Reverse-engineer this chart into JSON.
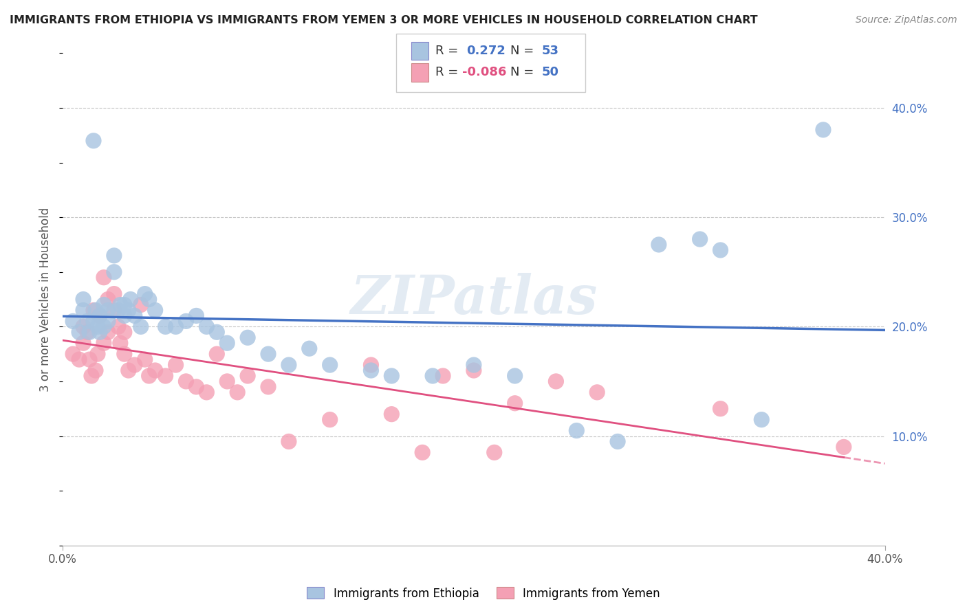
{
  "title": "IMMIGRANTS FROM ETHIOPIA VS IMMIGRANTS FROM YEMEN 3 OR MORE VEHICLES IN HOUSEHOLD CORRELATION CHART",
  "source": "Source: ZipAtlas.com",
  "ylabel": "3 or more Vehicles in Household",
  "xlim": [
    0.0,
    0.4
  ],
  "ylim": [
    0.0,
    0.45
  ],
  "watermark": "ZIPatlas",
  "R_ethiopia": 0.272,
  "N_ethiopia": 53,
  "R_yemen": -0.086,
  "N_yemen": 50,
  "color_ethiopia": "#a8c4e0",
  "color_yemen": "#f4a0b4",
  "line_color_ethiopia": "#4472c4",
  "line_color_yemen": "#e05080",
  "background_color": "#ffffff",
  "grid_color": "#c8c8c8",
  "ethiopia_x": [
    0.005,
    0.008,
    0.01,
    0.01,
    0.012,
    0.013,
    0.015,
    0.015,
    0.016,
    0.017,
    0.018,
    0.018,
    0.02,
    0.02,
    0.022,
    0.022,
    0.025,
    0.025,
    0.027,
    0.028,
    0.03,
    0.03,
    0.032,
    0.033,
    0.035,
    0.038,
    0.04,
    0.042,
    0.045,
    0.05,
    0.055,
    0.06,
    0.065,
    0.07,
    0.075,
    0.08,
    0.09,
    0.1,
    0.11,
    0.12,
    0.13,
    0.15,
    0.16,
    0.18,
    0.2,
    0.22,
    0.25,
    0.27,
    0.29,
    0.31,
    0.32,
    0.34,
    0.37
  ],
  "ethiopia_y": [
    0.205,
    0.195,
    0.215,
    0.225,
    0.205,
    0.195,
    0.37,
    0.205,
    0.215,
    0.2,
    0.21,
    0.195,
    0.22,
    0.2,
    0.215,
    0.205,
    0.265,
    0.25,
    0.215,
    0.22,
    0.22,
    0.21,
    0.215,
    0.225,
    0.21,
    0.2,
    0.23,
    0.225,
    0.215,
    0.2,
    0.2,
    0.205,
    0.21,
    0.2,
    0.195,
    0.185,
    0.19,
    0.175,
    0.165,
    0.18,
    0.165,
    0.16,
    0.155,
    0.155,
    0.165,
    0.155,
    0.105,
    0.095,
    0.275,
    0.28,
    0.27,
    0.115,
    0.38
  ],
  "yemen_x": [
    0.005,
    0.008,
    0.01,
    0.01,
    0.012,
    0.013,
    0.014,
    0.015,
    0.016,
    0.017,
    0.018,
    0.02,
    0.02,
    0.022,
    0.022,
    0.025,
    0.025,
    0.027,
    0.028,
    0.03,
    0.03,
    0.032,
    0.035,
    0.038,
    0.04,
    0.042,
    0.045,
    0.05,
    0.055,
    0.06,
    0.065,
    0.07,
    0.075,
    0.08,
    0.085,
    0.09,
    0.1,
    0.11,
    0.13,
    0.15,
    0.16,
    0.175,
    0.185,
    0.2,
    0.21,
    0.22,
    0.24,
    0.26,
    0.32,
    0.38
  ],
  "yemen_y": [
    0.175,
    0.17,
    0.2,
    0.185,
    0.195,
    0.17,
    0.155,
    0.215,
    0.16,
    0.175,
    0.21,
    0.245,
    0.185,
    0.225,
    0.195,
    0.215,
    0.23,
    0.2,
    0.185,
    0.195,
    0.175,
    0.16,
    0.165,
    0.22,
    0.17,
    0.155,
    0.16,
    0.155,
    0.165,
    0.15,
    0.145,
    0.14,
    0.175,
    0.15,
    0.14,
    0.155,
    0.145,
    0.095,
    0.115,
    0.165,
    0.12,
    0.085,
    0.155,
    0.16,
    0.085,
    0.13,
    0.15,
    0.14,
    0.125,
    0.09
  ]
}
